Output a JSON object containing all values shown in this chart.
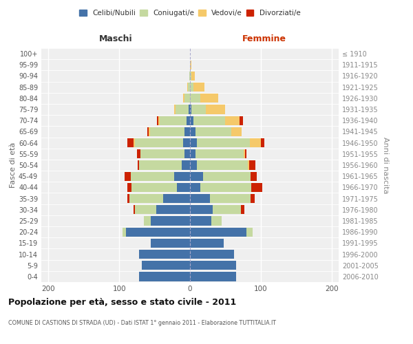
{
  "age_groups": [
    "0-4",
    "5-9",
    "10-14",
    "15-19",
    "20-24",
    "25-29",
    "30-34",
    "35-39",
    "40-44",
    "45-49",
    "50-54",
    "55-59",
    "60-64",
    "65-69",
    "70-74",
    "75-79",
    "80-84",
    "85-89",
    "90-94",
    "95-99",
    "100+"
  ],
  "birth_years": [
    "2006-2010",
    "2001-2005",
    "1996-2000",
    "1991-1995",
    "1986-1990",
    "1981-1985",
    "1976-1980",
    "1971-1975",
    "1966-1970",
    "1961-1965",
    "1956-1960",
    "1951-1955",
    "1946-1950",
    "1941-1945",
    "1936-1940",
    "1931-1935",
    "1926-1930",
    "1921-1925",
    "1916-1920",
    "1911-1915",
    "≤ 1910"
  ],
  "males": {
    "celibi": [
      72,
      68,
      72,
      55,
      90,
      55,
      48,
      38,
      18,
      22,
      12,
      8,
      10,
      8,
      5,
      2,
      0,
      0,
      0,
      0,
      0
    ],
    "coniugati": [
      0,
      0,
      0,
      0,
      5,
      10,
      30,
      48,
      65,
      62,
      60,
      62,
      68,
      48,
      38,
      18,
      8,
      3,
      1,
      0,
      0
    ],
    "vedovi": [
      0,
      0,
      0,
      0,
      0,
      0,
      0,
      0,
      0,
      0,
      0,
      0,
      2,
      2,
      2,
      2,
      2,
      1,
      0,
      0,
      0
    ],
    "divorziati": [
      0,
      0,
      0,
      0,
      0,
      0,
      2,
      2,
      5,
      8,
      2,
      5,
      8,
      2,
      2,
      0,
      0,
      0,
      0,
      0,
      0
    ]
  },
  "females": {
    "nubili": [
      65,
      65,
      62,
      48,
      80,
      30,
      32,
      28,
      15,
      18,
      10,
      8,
      10,
      8,
      5,
      2,
      0,
      0,
      0,
      0,
      0
    ],
    "coniugate": [
      0,
      0,
      0,
      0,
      8,
      15,
      40,
      58,
      72,
      68,
      72,
      68,
      75,
      50,
      45,
      20,
      15,
      5,
      2,
      0,
      0
    ],
    "vedove": [
      0,
      0,
      0,
      0,
      0,
      0,
      0,
      0,
      0,
      0,
      2,
      2,
      15,
      15,
      20,
      28,
      25,
      15,
      5,
      2,
      0
    ],
    "divorziate": [
      0,
      0,
      0,
      0,
      0,
      0,
      5,
      5,
      15,
      8,
      8,
      2,
      5,
      0,
      5,
      0,
      0,
      0,
      0,
      0,
      0
    ]
  },
  "colors": {
    "celibi_nubili": "#4472A8",
    "coniugati": "#C5D9A0",
    "vedovi": "#F5C96A",
    "divorziati": "#CC2200"
  },
  "xlim": 210,
  "title": "Popolazione per età, sesso e stato civile - 2011",
  "subtitle": "COMUNE DI CASTIONS DI STRADA (UD) - Dati ISTAT 1° gennaio 2011 - Elaborazione TUTTITALIA.IT",
  "xlabel_left": "Maschi",
  "xlabel_right": "Femmine",
  "ylabel_left": "Fasce di età",
  "ylabel_right": "Anni di nascita",
  "legend_labels": [
    "Celibi/Nubili",
    "Coniugati/e",
    "Vedovi/e",
    "Divorziati/e"
  ],
  "background_color": "#FFFFFF",
  "plot_bg_color": "#EFEFEF"
}
